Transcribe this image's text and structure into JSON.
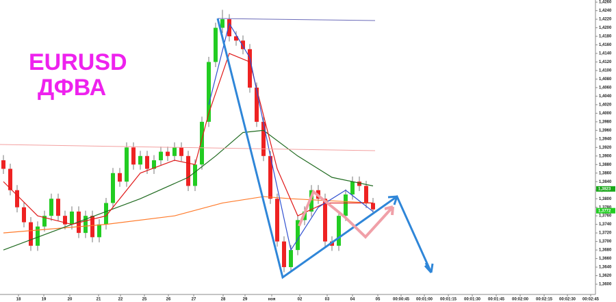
{
  "chart_data": {
    "type": "candlestick",
    "annotations": [
      "EURUSD",
      "ДФВА"
    ],
    "xlim": [
      -0.5,
      86.5
    ],
    "xticks": [
      {
        "value": 2.2,
        "label": "18"
      },
      {
        "value": 5.9,
        "label": "19"
      },
      {
        "value": 9.7,
        "label": "20"
      },
      {
        "value": 13.9,
        "label": "21"
      },
      {
        "value": 17.1,
        "label": "22"
      },
      {
        "value": 20.6,
        "label": "25"
      },
      {
        "value": 24.1,
        "label": "26"
      },
      {
        "value": 27.8,
        "label": "27"
      },
      {
        "value": 32.1,
        "label": "28"
      },
      {
        "value": 35.3,
        "label": "29"
      },
      {
        "value": 39.2,
        "label": "ноя"
      },
      {
        "value": 43.3,
        "label": "02"
      },
      {
        "value": 47.3,
        "label": "03"
      },
      {
        "value": 51,
        "label": "04"
      },
      {
        "value": 54.7,
        "label": "05"
      },
      {
        "value": 58.1,
        "label": "00:00:45"
      },
      {
        "value": 61.5,
        "label": "00:01:00"
      },
      {
        "value": 65,
        "label": "00:01:15"
      },
      {
        "value": 68.5,
        "label": "00:01:30"
      },
      {
        "value": 72,
        "label": "00:01:45"
      },
      {
        "value": 75.5,
        "label": "00:02:00"
      },
      {
        "value": 79,
        "label": "00:02:15"
      },
      {
        "value": 82.4,
        "label": "00:02:30"
      },
      {
        "value": 85.8,
        "label": "00:02:45"
      }
    ],
    "ylim": [
      1.3576,
      1.4265
    ],
    "yticks": [
      {
        "value": 1.36,
        "label": "1,3600"
      },
      {
        "value": 1.362,
        "label": "1,3620"
      },
      {
        "value": 1.364,
        "label": "1,3640"
      },
      {
        "value": 1.366,
        "label": "1,3660"
      },
      {
        "value": 1.368,
        "label": "1,3680"
      },
      {
        "value": 1.37,
        "label": "1,3700"
      },
      {
        "value": 1.372,
        "label": "1,3720"
      },
      {
        "value": 1.374,
        "label": "1,3740"
      },
      {
        "value": 1.376,
        "label": "1,3760"
      },
      {
        "value": 1.378,
        "label": "1,3780"
      },
      {
        "value": 1.38,
        "label": "1,3800"
      },
      {
        "value": 1.382,
        "label": "1,3820"
      },
      {
        "value": 1.384,
        "label": "1,3840"
      },
      {
        "value": 1.386,
        "label": "1,3860"
      },
      {
        "value": 1.388,
        "label": "1,3880"
      },
      {
        "value": 1.39,
        "label": "1,3900"
      },
      {
        "value": 1.392,
        "label": "1,3920"
      },
      {
        "value": 1.394,
        "label": "1,3940"
      },
      {
        "value": 1.396,
        "label": "1,3960"
      },
      {
        "value": 1.398,
        "label": "1,3980"
      },
      {
        "value": 1.4,
        "label": "1,4000"
      },
      {
        "value": 1.402,
        "label": "1,4020"
      },
      {
        "value": 1.404,
        "label": "1,4040"
      },
      {
        "value": 1.406,
        "label": "1,4060"
      },
      {
        "value": 1.408,
        "label": "1,4080"
      },
      {
        "value": 1.41,
        "label": "1,4100"
      },
      {
        "value": 1.412,
        "label": "1,4120"
      },
      {
        "value": 1.414,
        "label": "1,4140"
      },
      {
        "value": 1.416,
        "label": "1,4160"
      },
      {
        "value": 1.418,
        "label": "1,4180"
      },
      {
        "value": 1.42,
        "label": "1,4200"
      },
      {
        "value": 1.422,
        "label": "1,4220"
      },
      {
        "value": 1.424,
        "label": "1,4240"
      },
      {
        "value": 1.426,
        "label": "1,4260"
      }
    ],
    "up_color": "#22cc22",
    "down_color": "#ee2222",
    "open": [
      1.389,
      1.387,
      1.382,
      1.378,
      1.3745,
      1.369,
      1.3735,
      1.376,
      1.38,
      1.376,
      1.374,
      1.377,
      1.372,
      1.376,
      1.371,
      1.374,
      1.379,
      1.386,
      1.384,
      1.392,
      1.388,
      1.39,
      1.387,
      1.389,
      1.391,
      1.39,
      1.392,
      1.39,
      1.383,
      1.388,
      1.398,
      1.412,
      1.42,
      1.422,
      1.418,
      1.417,
      1.415,
      1.406,
      1.398,
      1.39,
      1.38,
      1.37,
      1.364,
      1.368,
      1.375,
      1.377,
      1.382,
      1.38,
      1.37,
      1.369,
      1.376,
      1.381,
      1.384,
      1.383,
      1.379
    ],
    "high": [
      1.3902,
      1.3882,
      1.3832,
      1.3792,
      1.3757,
      1.3747,
      1.3772,
      1.3812,
      1.3812,
      1.3772,
      1.3782,
      1.3782,
      1.3772,
      1.3772,
      1.3752,
      1.3802,
      1.3872,
      1.3872,
      1.3932,
      1.3932,
      1.3912,
      1.3912,
      1.3902,
      1.3922,
      1.3922,
      1.3932,
      1.3932,
      1.3912,
      1.3892,
      1.3992,
      1.4132,
      1.4212,
      1.4242,
      1.4232,
      1.4192,
      1.4182,
      1.4162,
      1.4072,
      1.3992,
      1.3912,
      1.3812,
      1.3712,
      1.3692,
      1.3762,
      1.3782,
      1.3832,
      1.3832,
      1.3812,
      1.3712,
      1.3772,
      1.3822,
      1.3852,
      1.3852,
      1.3842,
      1.3802
    ],
    "low": [
      1.3858,
      1.3808,
      1.3768,
      1.3733,
      1.3678,
      1.3678,
      1.3723,
      1.3748,
      1.3748,
      1.3728,
      1.3728,
      1.3708,
      1.3708,
      1.3698,
      1.3698,
      1.3728,
      1.3778,
      1.3828,
      1.3828,
      1.3868,
      1.3868,
      1.3858,
      1.3858,
      1.3878,
      1.3888,
      1.3888,
      1.3888,
      1.3818,
      1.3818,
      1.3868,
      1.3968,
      1.4108,
      1.4188,
      1.4168,
      1.4158,
      1.4138,
      1.4048,
      1.3968,
      1.3888,
      1.3788,
      1.3688,
      1.3628,
      1.3628,
      1.3668,
      1.3738,
      1.3758,
      1.3788,
      1.3688,
      1.3678,
      1.3678,
      1.3748,
      1.3798,
      1.3818,
      1.3778,
      1.3763
    ],
    "close": [
      1.387,
      1.382,
      1.378,
      1.3745,
      1.369,
      1.3735,
      1.376,
      1.38,
      1.376,
      1.374,
      1.377,
      1.372,
      1.376,
      1.371,
      1.374,
      1.379,
      1.386,
      1.384,
      1.392,
      1.388,
      1.39,
      1.387,
      1.389,
      1.391,
      1.39,
      1.392,
      1.39,
      1.383,
      1.388,
      1.398,
      1.412,
      1.42,
      1.422,
      1.418,
      1.417,
      1.415,
      1.406,
      1.398,
      1.39,
      1.38,
      1.37,
      1.364,
      1.368,
      1.375,
      1.377,
      1.382,
      1.38,
      1.37,
      1.369,
      1.376,
      1.381,
      1.384,
      1.383,
      1.379,
      1.3775
    ],
    "series": [
      {
        "color": "#ff7a2a",
        "x": [
          0,
          15,
          25,
          32,
          38,
          42,
          54
        ],
        "values": [
          1.372,
          1.374,
          1.376,
          1.379,
          1.3805,
          1.38,
          1.379
        ]
      },
      {
        "color": "#1f6a1f",
        "x": [
          0,
          10,
          20,
          27,
          31,
          35,
          38,
          43,
          48,
          54
        ],
        "values": [
          1.368,
          1.374,
          1.38,
          1.385,
          1.39,
          1.3955,
          1.396,
          1.39,
          1.385,
          1.383
        ]
      },
      {
        "color": "#e01818",
        "x": [
          0,
          5,
          10,
          15,
          20,
          25,
          28,
          30,
          33,
          36,
          40,
          43,
          47,
          50,
          54
        ],
        "values": [
          1.384,
          1.376,
          1.374,
          1.376,
          1.386,
          1.389,
          1.388,
          1.4,
          1.414,
          1.412,
          1.387,
          1.376,
          1.379,
          1.379,
          1.379
        ]
      },
      {
        "color": "#3050d0",
        "x": [
          30,
          33,
          36,
          39,
          42,
          46,
          50,
          54
        ],
        "values": [
          1.402,
          1.421,
          1.413,
          1.39,
          1.368,
          1.378,
          1.382,
          1.377
        ]
      }
    ],
    "price_tags": [
      {
        "value": 1.3823,
        "label": "1,3823",
        "color": "#1aa81a"
      },
      {
        "value": 1.3772,
        "label": "1,3772",
        "color": "#22cc22"
      }
    ]
  }
}
